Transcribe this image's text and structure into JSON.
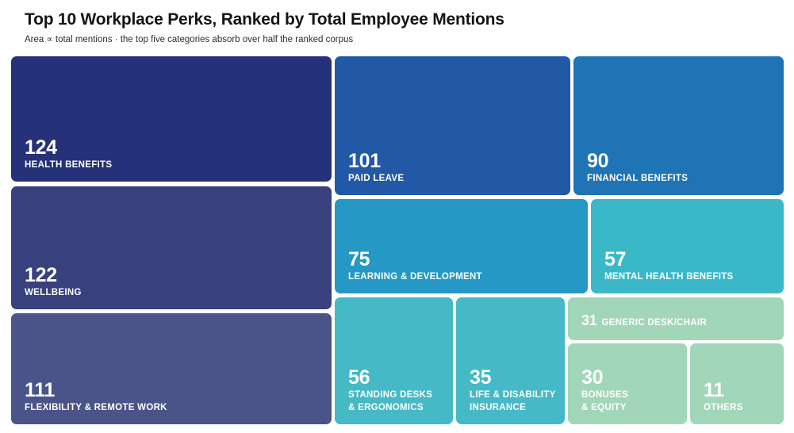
{
  "chart_data": {
    "type": "treemap",
    "title": "Top 10 Workplace Perks, Ranked by Total Employee Mentions",
    "subtitle": "Area ∝ total mentions · the top five categories absorb over half the ranked corpus",
    "items": [
      {
        "label": "HEALTH BENEFITS",
        "value": 124,
        "color": "#253178"
      },
      {
        "label": "WELLBEING",
        "value": 122,
        "color": "#38407e"
      },
      {
        "label": "FLEXIBILITY & REMOTE WORK",
        "value": 111,
        "color": "#4b5488"
      },
      {
        "label": "PAID LEAVE",
        "value": 101,
        "color": "#2259a7"
      },
      {
        "label": "FINANCIAL BENEFITS",
        "value": 90,
        "color": "#1f74b6"
      },
      {
        "label": "LEARNING & DEVELOPMENT",
        "value": 75,
        "color": "#2598c6"
      },
      {
        "label": "MENTAL HEALTH BENEFITS",
        "value": 57,
        "color": "#3ab8c8"
      },
      {
        "label": "STANDING DESKS\n& ERGONOMICS",
        "value": 56,
        "color": "#45b9c6"
      },
      {
        "label": "LIFE & DISABILITY\nINSURANCE",
        "value": 35,
        "color": "#45b9c6"
      },
      {
        "label": "GENERIC DESK/CHAIR",
        "value": 31,
        "color": "#a2d6b8"
      },
      {
        "label": "BONUSES\n& EQUITY",
        "value": 30,
        "color": "#a2d6b8"
      },
      {
        "label": "OTHERS",
        "value": 11,
        "color": "#a2d6b8"
      }
    ]
  }
}
